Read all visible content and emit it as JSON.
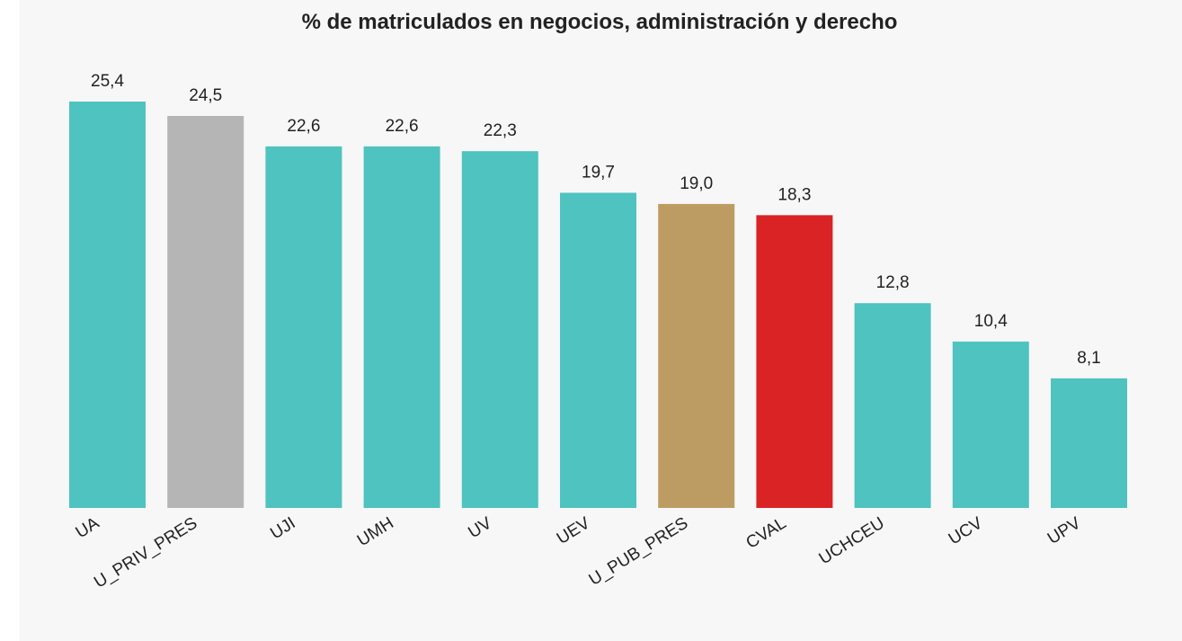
{
  "chart_data": {
    "type": "bar",
    "title": "% de matriculados en negocios, administración y derecho",
    "categories": [
      "UA",
      "U_PRIV_PRES",
      "UJI",
      "UMH",
      "UV",
      "UEV",
      "U_PUB_PRES",
      "CVAL",
      "UCHCEU",
      "UCV",
      "UPV"
    ],
    "values": [
      25.4,
      24.5,
      22.6,
      22.6,
      22.3,
      19.7,
      19.0,
      18.3,
      12.8,
      10.4,
      8.1
    ],
    "value_labels": [
      "25,4",
      "24,5",
      "22,6",
      "22,6",
      "22,3",
      "19,7",
      "19,0",
      "18,3",
      "12,8",
      "10,4",
      "8,1"
    ],
    "colors": [
      "#4ec3c0",
      "#b5b5b5",
      "#4ec3c0",
      "#4ec3c0",
      "#4ec3c0",
      "#4ec3c0",
      "#bd9c63",
      "#da2325",
      "#4ec3c0",
      "#4ec3c0",
      "#4ec3c0"
    ]
  }
}
